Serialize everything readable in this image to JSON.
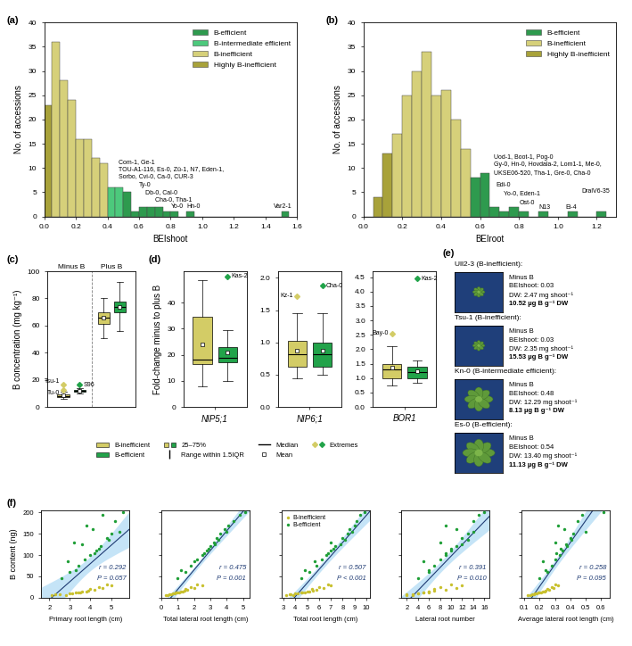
{
  "chart_data": [
    {
      "type": "histogram",
      "panel": "(a)",
      "xlabel": "BEIshoot",
      "ylabel": "No. of accessions",
      "bins": [
        0,
        0.05,
        0.1,
        0.15,
        0.2,
        0.25,
        0.3,
        0.35,
        0.4,
        0.45,
        0.5,
        0.55,
        0.6,
        0.65,
        0.7,
        0.75,
        0.8,
        0.85,
        0.9,
        0.95,
        1.0,
        1.05,
        1.1,
        1.15,
        1.2,
        1.25,
        1.3,
        1.35,
        1.4,
        1.45,
        1.5,
        1.55
      ],
      "counts": [
        23,
        36,
        28,
        24,
        16,
        16,
        12,
        11,
        6,
        6,
        5,
        1,
        2,
        2,
        2,
        1,
        1,
        0,
        1,
        0,
        0,
        0,
        0,
        0,
        0,
        0,
        0,
        0,
        0,
        0,
        1
      ],
      "colors": [
        "#a8a23a",
        "#d6d07a",
        "#d6d07a",
        "#d6d07a",
        "#d6d07a",
        "#d6d07a",
        "#d6d07a",
        "#d6d07a",
        "#4cc97c",
        "#4cc97c",
        "#2e9a4e",
        "#2e9a4e",
        "#2e9a4e",
        "#2e9a4e",
        "#2e9a4e",
        "#2e9a4e",
        "#2e9a4e",
        "#2e9a4e",
        "#2e9a4e",
        "#2e9a4e",
        "#2e9a4e",
        "#2e9a4e",
        "#2e9a4e",
        "#2e9a4e",
        "#2e9a4e",
        "#2e9a4e",
        "#2e9a4e",
        "#2e9a4e",
        "#2e9a4e",
        "#2e9a4e",
        "#2e9a4e"
      ],
      "xlim": [
        0,
        1.6
      ],
      "xticks": [
        {
          "value": 0,
          "label": "0.0"
        },
        0.2,
        0.4,
        0.6,
        0.8,
        {
          "value": 1,
          "label": "1.0"
        },
        1.2,
        1.4,
        1.6
      ],
      "ylim": [
        0,
        40
      ],
      "yticks": [
        0,
        5,
        10,
        15,
        20,
        25,
        30,
        35,
        40
      ],
      "legend": "upper right",
      "legend_entries": [
        {
          "name": "B-efficient",
          "color": "#2e9a4e"
        },
        {
          "name": "B-intermediate efficient",
          "color": "#4cc97c"
        },
        {
          "name": "B-inefficient",
          "color": "#d6d07a"
        },
        {
          "name": "Highly B-inefficient",
          "color": "#a8a23a"
        }
      ],
      "annotations": [
        "Com-1, Ge-1",
        "TOU-A1-116, Es-0, Zü-1, N7, Eden-1,",
        "Sorbo, Cvi-0, Ca-0, CUR-3",
        "Ty-0",
        "Db-0, Cal-0",
        "Cha-0, Tha-1",
        "Yo-0",
        "Hn-0",
        "Var2-1"
      ]
    },
    {
      "type": "histogram",
      "panel": "(b)",
      "xlabel": "BEIroot",
      "ylabel": "No. of accessions",
      "bins": [
        0,
        0.05,
        0.1,
        0.15,
        0.2,
        0.25,
        0.3,
        0.35,
        0.4,
        0.45,
        0.5,
        0.55,
        0.6,
        0.65,
        0.7,
        0.75,
        0.8,
        0.85,
        0.9,
        0.95,
        1.0,
        1.05,
        1.1,
        1.15,
        1.2,
        1.25
      ],
      "counts": [
        0,
        4,
        13,
        17,
        25,
        30,
        34,
        25,
        26,
        20,
        14,
        8,
        9,
        2,
        1,
        2,
        1,
        0,
        1,
        0,
        0,
        1,
        0,
        0,
        1
      ],
      "colors": [
        "#a8a23a",
        "#a8a23a",
        "#a8a23a",
        "#d6d07a",
        "#d6d07a",
        "#d6d07a",
        "#d6d07a",
        "#d6d07a",
        "#d6d07a",
        "#d6d07a",
        "#d6d07a",
        "#2e9a4e",
        "#2e9a4e",
        "#2e9a4e",
        "#2e9a4e",
        "#2e9a4e",
        "#2e9a4e",
        "#2e9a4e",
        "#2e9a4e",
        "#2e9a4e",
        "#2e9a4e",
        "#2e9a4e",
        "#2e9a4e",
        "#2e9a4e",
        "#2e9a4e"
      ],
      "xlim": [
        0,
        1.3
      ],
      "xticks": [
        {
          "value": 0,
          "label": "0.0"
        },
        0.2,
        0.4,
        0.6,
        0.8,
        {
          "value": 1,
          "label": "1.0"
        },
        1.2
      ],
      "ylim": [
        0,
        40
      ],
      "yticks": [
        0,
        5,
        10,
        15,
        20,
        25,
        30,
        35,
        40
      ],
      "legend": "upper right",
      "legend_entries": [
        {
          "name": "B-efficient",
          "color": "#2e9a4e"
        },
        {
          "name": "B-inefficient",
          "color": "#d6d07a"
        },
        {
          "name": "Highly B-inefficient",
          "color": "#a8a23a"
        }
      ],
      "annotations": [
        "Uod-1, Boot-1, Pog-0",
        "Gy-0, Hn-0, Hovdala-2, Lom1-1, Me-0,",
        "UKSE06-520, Tha-1, Gre-0, Cha-0",
        "Edi-0",
        "Yo-0, Eden-1",
        "Ost-0",
        "N13",
        "DralV6-35",
        "Ei-4"
      ]
    },
    {
      "type": "box",
      "panel": "(c)",
      "ylabel": "B concentration (mg kg⁻¹)",
      "categories": [
        "Minus B",
        "Plus B"
      ],
      "ylim": [
        0,
        100
      ],
      "yticks": [
        0,
        20,
        40,
        60,
        80,
        100
      ],
      "tick_labels": "y",
      "series": [
        {
          "name": "B-inefficient",
          "color": "#d3cc66",
          "boxes": [
            {
              "whislo": 6,
              "q1": 7.5,
              "med": 8.2,
              "q3": 9.5,
              "whishi": 11,
              "mean": 8.6
            },
            {
              "whislo": 51,
              "q1": 61,
              "med": 66,
              "q3": 70,
              "whishi": 80,
              "mean": 66
            }
          ],
          "extremes": [
            [
              {
                "label": "Tsu-1",
                "value": 16.5
              },
              {
                "label": "Tu-0",
                "value": 12.5
              }
            ],
            []
          ]
        },
        {
          "name": "B-efficient",
          "color": "#22a34a",
          "boxes": [
            {
              "whislo": 10,
              "q1": 11,
              "med": 12,
              "q3": 12.8,
              "whishi": 14,
              "mean": 12
            },
            {
              "whislo": 56,
              "q1": 70,
              "med": 74,
              "q3": 78,
              "whishi": 92,
              "mean": 74
            }
          ],
          "extremes": [
            [
              {
                "label": "S96",
                "value": 16.5
              }
            ],
            []
          ]
        }
      ]
    },
    {
      "type": "box",
      "panel": "(d)",
      "ylabel": "Fold-change minus to plus B",
      "key_entries": [
        "B-inefficient",
        "B-efficient",
        "25–75%",
        "Range within 1.5IQR",
        "Median",
        "Mean",
        "Extremes"
      ],
      "subplots": [
        {
          "category": "NIP5;1",
          "ylim": [
            0,
            52
          ],
          "yticks": [
            0,
            10,
            20,
            30,
            40
          ],
          "series": [
            {
              "name": "B-inefficient",
              "color": "#d3cc66",
              "box": {
                "whislo": 8,
                "q1": 16.5,
                "med": 18,
                "q3": 34.5,
                "whishi": 48.5,
                "mean": 24
              },
              "extremes": []
            },
            {
              "name": "B-efficient",
              "color": "#22a34a",
              "box": {
                "whislo": 10,
                "q1": 17,
                "med": 19,
                "q3": 23,
                "whishi": 29.5,
                "mean": 21
              },
              "extremes": [
                {
                  "label": "Kas-2",
                  "value": 50
                }
              ]
            }
          ]
        },
        {
          "category": "NIP6;1",
          "ylim": [
            0,
            2.1
          ],
          "yticks": [
            {
              "value": 0,
              "label": "0.0"
            },
            0.5,
            {
              "value": 1,
              "label": "1.0"
            },
            1.5,
            {
              "value": 2,
              "label": "2.0"
            }
          ],
          "series": [
            {
              "name": "B-inefficient",
              "color": "#d3cc66",
              "box": {
                "whislo": 0.45,
                "q1": 0.62,
                "med": 0.82,
                "q3": 1.02,
                "whishi": 1.45,
                "mean": 0.87
              },
              "extremes": [
                {
                  "label": "Kz-1",
                  "value": 1.72
                }
              ]
            },
            {
              "name": "B-efficient",
              "color": "#22a34a",
              "box": {
                "whislo": 0.5,
                "q1": 0.63,
                "med": 0.82,
                "q3": 1.0,
                "whishi": 1.45,
                "mean": 0.87
              },
              "extremes": [
                {
                  "label": "Cha-0",
                  "value": 1.88
                }
              ]
            }
          ]
        },
        {
          "category": "BOR1",
          "ylim": [
            0,
            4.7
          ],
          "yticks": [
            {
              "value": 0,
              "label": "0.0"
            },
            0.5,
            {
              "value": 1,
              "label": "1.0"
            },
            1.5,
            {
              "value": 2,
              "label": "2.0"
            },
            2.5,
            {
              "value": 3,
              "label": "3.0"
            },
            3.5,
            {
              "value": 4,
              "label": "4.0"
            },
            4.5
          ],
          "series": [
            {
              "name": "B-inefficient",
              "color": "#d3cc66",
              "box": {
                "whislo": 0.75,
                "q1": 1.0,
                "med": 1.3,
                "q3": 1.5,
                "whishi": 2.1,
                "mean": 1.37
              },
              "extremes": [
                {
                  "label": "Bay-0",
                  "value": 2.55
                }
              ]
            },
            {
              "name": "B-efficient",
              "color": "#22a34a",
              "box": {
                "whislo": 0.85,
                "q1": 1.0,
                "med": 1.2,
                "q3": 1.4,
                "whishi": 1.62,
                "mean": 1.25
              },
              "extremes": [
                {
                  "label": "Kas-2",
                  "value": 4.45
                }
              ]
            }
          ]
        }
      ]
    },
    {
      "type": "image_panel",
      "panel": "(e)",
      "items": [
        {
          "title": "Ull2-3 (B-inefficient):",
          "lines": [
            "Minus B",
            "BEIshoot: 0.03",
            "DW: 2.47 mg shoot⁻¹",
            "10.52 µg B g⁻¹ DW"
          ]
        },
        {
          "title": "Tsu-1 (B-inefficient):",
          "lines": [
            "Minus B",
            "BEIshoot: 0.03",
            "DW: 2.35 mg shoot⁻¹",
            "15.53 µg B g⁻¹ DW"
          ]
        },
        {
          "title": "Kn-0 (B-intermediate efficient):",
          "lines": [
            "Minus B",
            "BEIshoot: 0.48",
            "DW: 12.29 mg shoot⁻¹",
            "8.13 µg B g⁻¹ DW"
          ]
        },
        {
          "title": "Es-0 (B-efficient):",
          "lines": [
            "Minus B",
            "BEIshoot: 0.54",
            "DW: 13.40 mg shoot⁻¹",
            "11.13 µg B g⁻¹ DW"
          ]
        }
      ]
    },
    {
      "type": "scatter",
      "panel": "(f)",
      "ylabel": "B content (ng)",
      "ylim": [
        0,
        205
      ],
      "yticks": [
        0,
        50,
        100,
        150,
        200
      ],
      "series": [
        {
          "name": "B-inefficient",
          "color": "#c8c02e",
          "marker": "o",
          "y": [
            5,
            8,
            10,
            12,
            15,
            6,
            20,
            25,
            9,
            14,
            18,
            30,
            7,
            11,
            22,
            16,
            13,
            28
          ]
        },
        {
          "name": "B-efficient",
          "color": "#1e9e36",
          "marker": "o",
          "y": [
            45,
            60,
            75,
            90,
            100,
            110,
            120,
            130,
            140,
            150,
            160,
            170,
            180,
            195,
            200,
            85,
            115,
            125,
            135,
            155,
            65,
            105
          ]
        }
      ],
      "subplots": [
        {
          "xlabel": "Primary root length (cm)",
          "xlim": [
            1.6,
            5.9
          ],
          "xticks": [
            2,
            3,
            4,
            5
          ],
          "x": [
            [
              2.1,
              2.5,
              3.0,
              3.3,
              3.6,
              2.8,
              4.0,
              4.4,
              3.1,
              3.8,
              4.2,
              4.8,
              2.3,
              3.5,
              4.6,
              3.9,
              3.4,
              5.0
            ],
            [
              2.6,
              3.0,
              3.4,
              3.7,
              4.0,
              4.3,
              4.5,
              3.2,
              4.8,
              5.0,
              4.1,
              3.8,
              5.2,
              4.6,
              5.6,
              2.9,
              4.4,
              3.6,
              4.9,
              5.4,
              3.3,
              4.2
            ]
          ],
          "r": "r = 0.292",
          "P": "P = 0.057"
        },
        {
          "xlabel": "Total lateral root length (cm)",
          "xlim": [
            0,
            5.4
          ],
          "xticks": [
            0,
            1,
            2,
            3,
            4,
            5
          ],
          "tick_labels": "x",
          "x": [
            [
              0.3,
              0.5,
              0.7,
              1.0,
              1.2,
              0.4,
              1.5,
              1.8,
              0.8,
              1.3,
              1.6,
              2.2,
              0.6,
              0.9,
              2.0,
              1.4,
              1.1,
              2.5
            ],
            [
              1.0,
              1.5,
              1.8,
              2.2,
              2.5,
              2.8,
              3.0,
              3.2,
              3.4,
              3.6,
              3.9,
              4.1,
              4.4,
              4.8,
              5.1,
              2.0,
              2.9,
              3.3,
              3.5,
              4.0,
              1.2,
              2.6
            ]
          ],
          "r": "r = 0.475",
          "P": "P = 0.001"
        },
        {
          "xlabel": "Total root length (cm)",
          "xlim": [
            2.8,
            10.3
          ],
          "xticks": [
            3,
            4,
            5,
            6,
            7,
            8,
            9,
            10
          ],
          "tick_labels": "x",
          "legend": "upper left",
          "x": [
            [
              3.2,
              3.6,
              4.0,
              4.5,
              5.0,
              3.8,
              5.4,
              6.0,
              4.2,
              5.2,
              5.8,
              6.8,
              3.5,
              4.6,
              6.4,
              5.5,
              4.8,
              7.0
            ],
            [
              4.5,
              5.2,
              5.8,
              6.2,
              6.6,
              7.0,
              7.4,
              7.0,
              8.0,
              8.4,
              8.6,
              9.0,
              9.2,
              9.5,
              9.9,
              5.6,
              7.2,
              7.8,
              8.2,
              8.8,
              4.8,
              6.8
            ]
          ],
          "r": "r = 0.507",
          "P": "P < 0.001"
        },
        {
          "xlabel": "Lateral root number",
          "xlim": [
            1,
            17
          ],
          "xticks": [
            2,
            4,
            6,
            8,
            10,
            12,
            14,
            16
          ],
          "tick_labels": "x",
          "x": [
            [
              2,
              3,
              4,
              5,
              6,
              3,
              7,
              8,
              4,
              6,
              9,
              10,
              2,
              5,
              11,
              7,
              6,
              12
            ],
            [
              4,
              6,
              7,
              8,
              9,
              10,
              11,
              8,
              12,
              13,
              11,
              9,
              14,
              15,
              16,
              5,
              10,
              12,
              13,
              14,
              6,
              9
            ]
          ],
          "r": "r = 0.391",
          "P": "P = 0.010"
        },
        {
          "xlabel": "Average lateral root length (cm)",
          "xlim": [
            0.08,
            0.66
          ],
          "xticks": [
            0.1,
            0.2,
            0.3,
            0.4,
            0.5,
            0.6
          ],
          "tick_labels": "x",
          "x": [
            [
              0.12,
              0.15,
              0.18,
              0.2,
              0.22,
              0.14,
              0.25,
              0.28,
              0.17,
              0.23,
              0.26,
              0.3,
              0.16,
              0.19,
              0.29,
              0.24,
              0.21,
              0.32
            ],
            [
              0.2,
              0.25,
              0.28,
              0.3,
              0.33,
              0.35,
              0.38,
              0.3,
              0.4,
              0.42,
              0.36,
              0.32,
              0.45,
              0.48,
              0.62,
              0.22,
              0.34,
              0.37,
              0.41,
              0.5,
              0.24,
              0.31
            ]
          ],
          "r": "r = 0.258",
          "P": "P = 0.095"
        }
      ]
    }
  ]
}
